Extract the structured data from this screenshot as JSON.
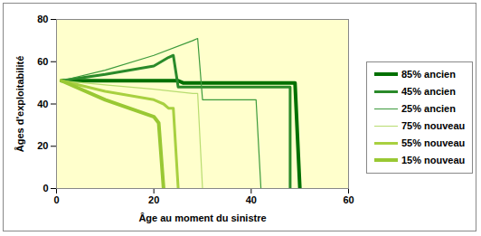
{
  "chart_data": {
    "type": "line",
    "x_label": "Âge au moment du sinistre",
    "y_label": "Âges d'exploitabilité",
    "xlim": [
      0,
      60
    ],
    "xticks": [
      0,
      20,
      40,
      60
    ],
    "ylim": [
      0,
      80
    ],
    "yticks": [
      0,
      20,
      40,
      60,
      80
    ],
    "grid": true,
    "legend": "right",
    "series": [
      {
        "name": "85% ancien",
        "color": "#007000",
        "x": [
          1,
          25,
          26,
          49,
          50
        ],
        "values": [
          51,
          51,
          50,
          50,
          0
        ]
      },
      {
        "name": "45% ancien",
        "color": "#2a8a2a",
        "x": [
          1,
          10,
          20,
          23,
          24,
          25,
          47,
          48,
          48
        ],
        "values": [
          51,
          54,
          58,
          62,
          63,
          48,
          48,
          48,
          0
        ]
      },
      {
        "name": "25% ancien",
        "color": "#3c9a3c",
        "x": [
          1,
          10,
          20,
          28,
          29,
          30,
          41,
          42
        ],
        "values": [
          51,
          56,
          63,
          70,
          71,
          42,
          42,
          0
        ]
      },
      {
        "name": "75% nouveau",
        "color": "#b8dc70",
        "x": [
          1,
          10,
          20,
          28,
          29,
          30
        ],
        "values": [
          51,
          49,
          47,
          45,
          45,
          0
        ]
      },
      {
        "name": "55% nouveau",
        "color": "#a8d040",
        "x": [
          1,
          10,
          20,
          22,
          23,
          24,
          25
        ],
        "values": [
          51,
          46,
          42,
          40,
          38,
          38,
          0
        ]
      },
      {
        "name": "15% nouveau",
        "color": "#99c833",
        "x": [
          1,
          10,
          20,
          21,
          22
        ],
        "values": [
          51,
          42,
          34,
          31,
          0
        ]
      }
    ]
  }
}
